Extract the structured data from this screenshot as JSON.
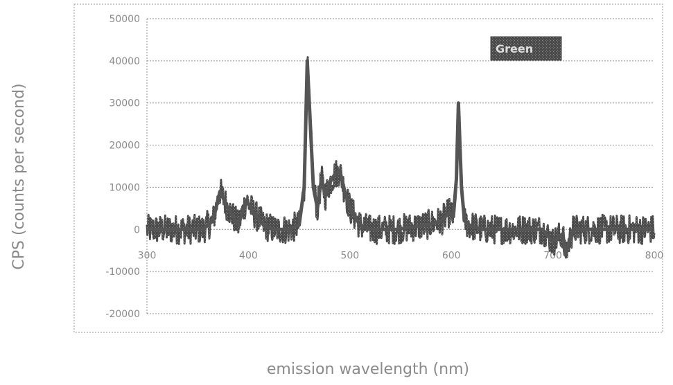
{
  "chart_data": {
    "type": "line",
    "title": "",
    "xlabel": "emission wavelength (nm)",
    "ylabel": "CPS (counts per second)",
    "xlim": [
      300,
      800
    ],
    "ylim": [
      -20000,
      50000
    ],
    "x_ticks": [
      300,
      400,
      500,
      600,
      700,
      800
    ],
    "x_tick_labels": [
      "300",
      "400",
      "500",
      "600",
      "700",
      "800"
    ],
    "y_ticks": [
      -20000,
      -10000,
      0,
      10000,
      20000,
      30000,
      40000,
      50000
    ],
    "y_tick_labels": [
      "-20000",
      "-10000",
      "0",
      "10000",
      "20000",
      "30000",
      "40000",
      "50000"
    ],
    "grid": true,
    "legend_position": "top-right",
    "series": [
      {
        "name": "Green",
        "color": "#555555",
        "x": [
          300,
          320,
          340,
          355,
          365,
          372,
          380,
          390,
          398,
          405,
          415,
          425,
          440,
          450,
          455,
          458,
          461,
          464,
          468,
          472,
          476,
          480,
          485,
          490,
          495,
          500,
          505,
          510,
          520,
          530,
          545,
          560,
          575,
          590,
          598,
          602,
          605,
          607,
          610,
          613,
          618,
          630,
          650,
          670,
          690,
          700,
          710,
          712,
          720,
          740,
          760,
          780,
          800
        ],
        "y": [
          0,
          0,
          0,
          0,
          2000,
          9000,
          5000,
          1000,
          7000,
          4000,
          1000,
          0,
          0,
          1000,
          10000,
          40000,
          25000,
          10000,
          5000,
          12000,
          8000,
          11000,
          13000,
          14000,
          9000,
          5000,
          3000,
          1000,
          0,
          0,
          0,
          500,
          1000,
          2000,
          4000,
          3000,
          12000,
          30000,
          10000,
          2000,
          1000,
          0,
          0,
          0,
          0,
          -3000,
          -1000,
          -6000,
          0,
          0,
          0,
          0,
          0
        ]
      }
    ]
  }
}
